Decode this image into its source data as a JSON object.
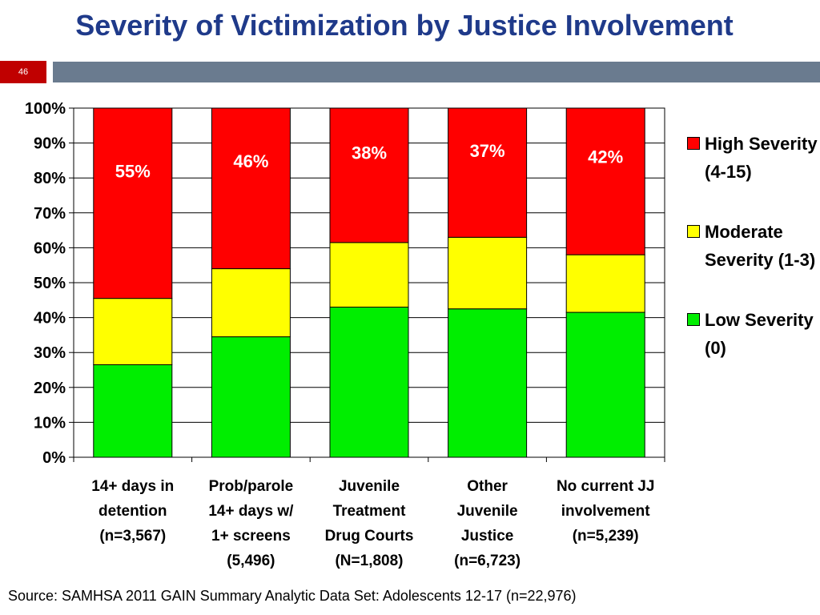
{
  "slide": {
    "title": "Severity of Victimization by Justice Involvement",
    "number": "46",
    "source": "Source: SAMHSA 2011 GAIN Summary Analytic Data Set: Adolescents 12-17 (n=22,976)"
  },
  "colors": {
    "title": "#1f3a8a",
    "slide_number_bg": "#c00000",
    "header_bar": "#6a7b8f"
  },
  "legend": [
    {
      "label": "High Severity (4-15)",
      "color": "#ff0000"
    },
    {
      "label": "Moderate Severity (1-3)",
      "color": "#ffff00"
    },
    {
      "label": "Low Severity (0)",
      "color": "#00ee00"
    }
  ],
  "chart_data": {
    "type": "bar",
    "stacked": true,
    "categories": [
      [
        "14+ days in",
        "detention",
        "(n=3,567)"
      ],
      [
        "Prob/parole",
        "14+ days w/",
        "1+ screens",
        "(5,496)"
      ],
      [
        "Juvenile",
        "Treatment",
        "Drug Courts",
        "(N=1,808)"
      ],
      [
        "Other",
        "Juvenile",
        "Justice",
        "(n=6,723)"
      ],
      [
        "No current JJ",
        "involvement",
        "(n=5,239)"
      ]
    ],
    "series": [
      {
        "name": "Low Severity (0)",
        "color": "#00ee00",
        "values": [
          26.5,
          34.5,
          43,
          42.5,
          41.5
        ]
      },
      {
        "name": "Moderate Severity (1-3)",
        "color": "#ffff00",
        "values": [
          19,
          19.5,
          18.5,
          20.5,
          16.5
        ]
      },
      {
        "name": "High Severity (4-15)",
        "color": "#ff0000",
        "values": [
          54.5,
          46,
          38.5,
          37,
          42
        ]
      }
    ],
    "data_labels": [
      "55%",
      "46%",
      "38%",
      "37%",
      "42%"
    ],
    "yticks": [
      "0%",
      "10%",
      "20%",
      "30%",
      "40%",
      "50%",
      "60%",
      "70%",
      "80%",
      "90%",
      "100%"
    ],
    "ylim": [
      0,
      100
    ],
    "grid": true,
    "legend_position": "right"
  }
}
